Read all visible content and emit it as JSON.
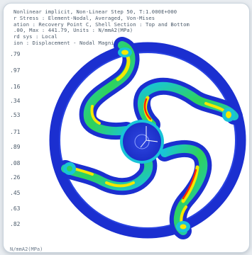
{
  "header": {
    "lines": [
      "Nonlinear implicit, Non-Linear Step 50, T:1.000E+000",
      "r Stress : Element-Nodal, Averaged, Von-Mises",
      "ation : Recovery Point C, Shell Section : Top and Bottom",
      ".00, Max : 441.79, Units : N/mmA2(MPa)",
      "rd sys : Local",
      "ion : Displacement - Nodal Magnitude"
    ]
  },
  "legend": {
    "values": [
      ".79",
      ".97",
      ".16",
      ".34",
      ".53",
      ".71",
      ".89",
      ".08",
      ".26",
      ".45",
      ".63",
      ".82"
    ]
  },
  "footer": {
    "unit_text": "N/mmA2(MPa)"
  },
  "colors": {
    "ring": "#1b2fd0",
    "hub": "#2236cf",
    "high_stress": "#ff2a00",
    "mid_stress": "#f5e800",
    "low_stress": "#19c4d8",
    "green": "#2fd25a"
  },
  "icons": {
    "triad": "coordinate-triad-icon"
  }
}
